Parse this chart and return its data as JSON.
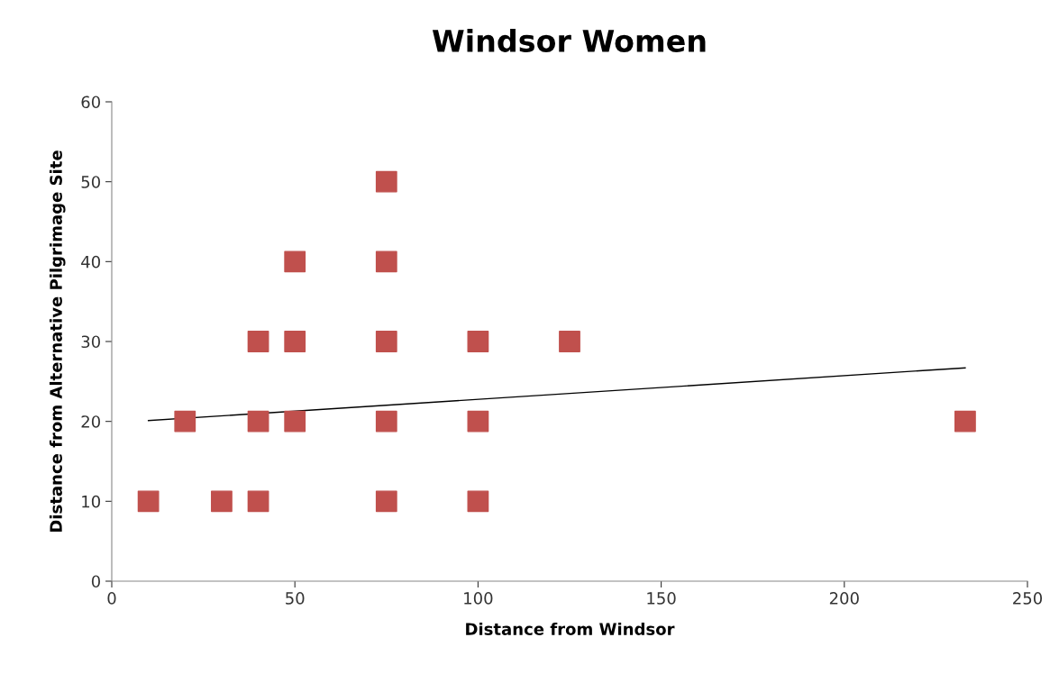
{
  "chart_data": {
    "type": "scatter",
    "title": "Windsor Women",
    "xlabel": "Distance from Windsor",
    "ylabel": "Distance from Alternative Pilgrimage Site",
    "xlim": [
      0,
      250
    ],
    "xticks": [
      0,
      50,
      100,
      150,
      200,
      250
    ],
    "ylim": [
      0,
      60
    ],
    "yticks": [
      0,
      10,
      20,
      30,
      40,
      50,
      60
    ],
    "grid": false,
    "legend": false,
    "series": [
      {
        "marker": "square",
        "color": "#c0504d",
        "x": [
          10,
          20,
          30,
          40,
          40,
          40,
          50,
          50,
          50,
          75,
          75,
          75,
          75,
          75,
          100,
          100,
          100,
          125,
          233
        ],
        "values": [
          10,
          20,
          10,
          30,
          20,
          10,
          40,
          30,
          20,
          50,
          40,
          30,
          20,
          10,
          30,
          20,
          10,
          30,
          20
        ]
      },
      {
        "type": "line",
        "color": "#000000",
        "x": [
          10,
          233
        ],
        "values": [
          20.1,
          26.7
        ]
      }
    ]
  }
}
